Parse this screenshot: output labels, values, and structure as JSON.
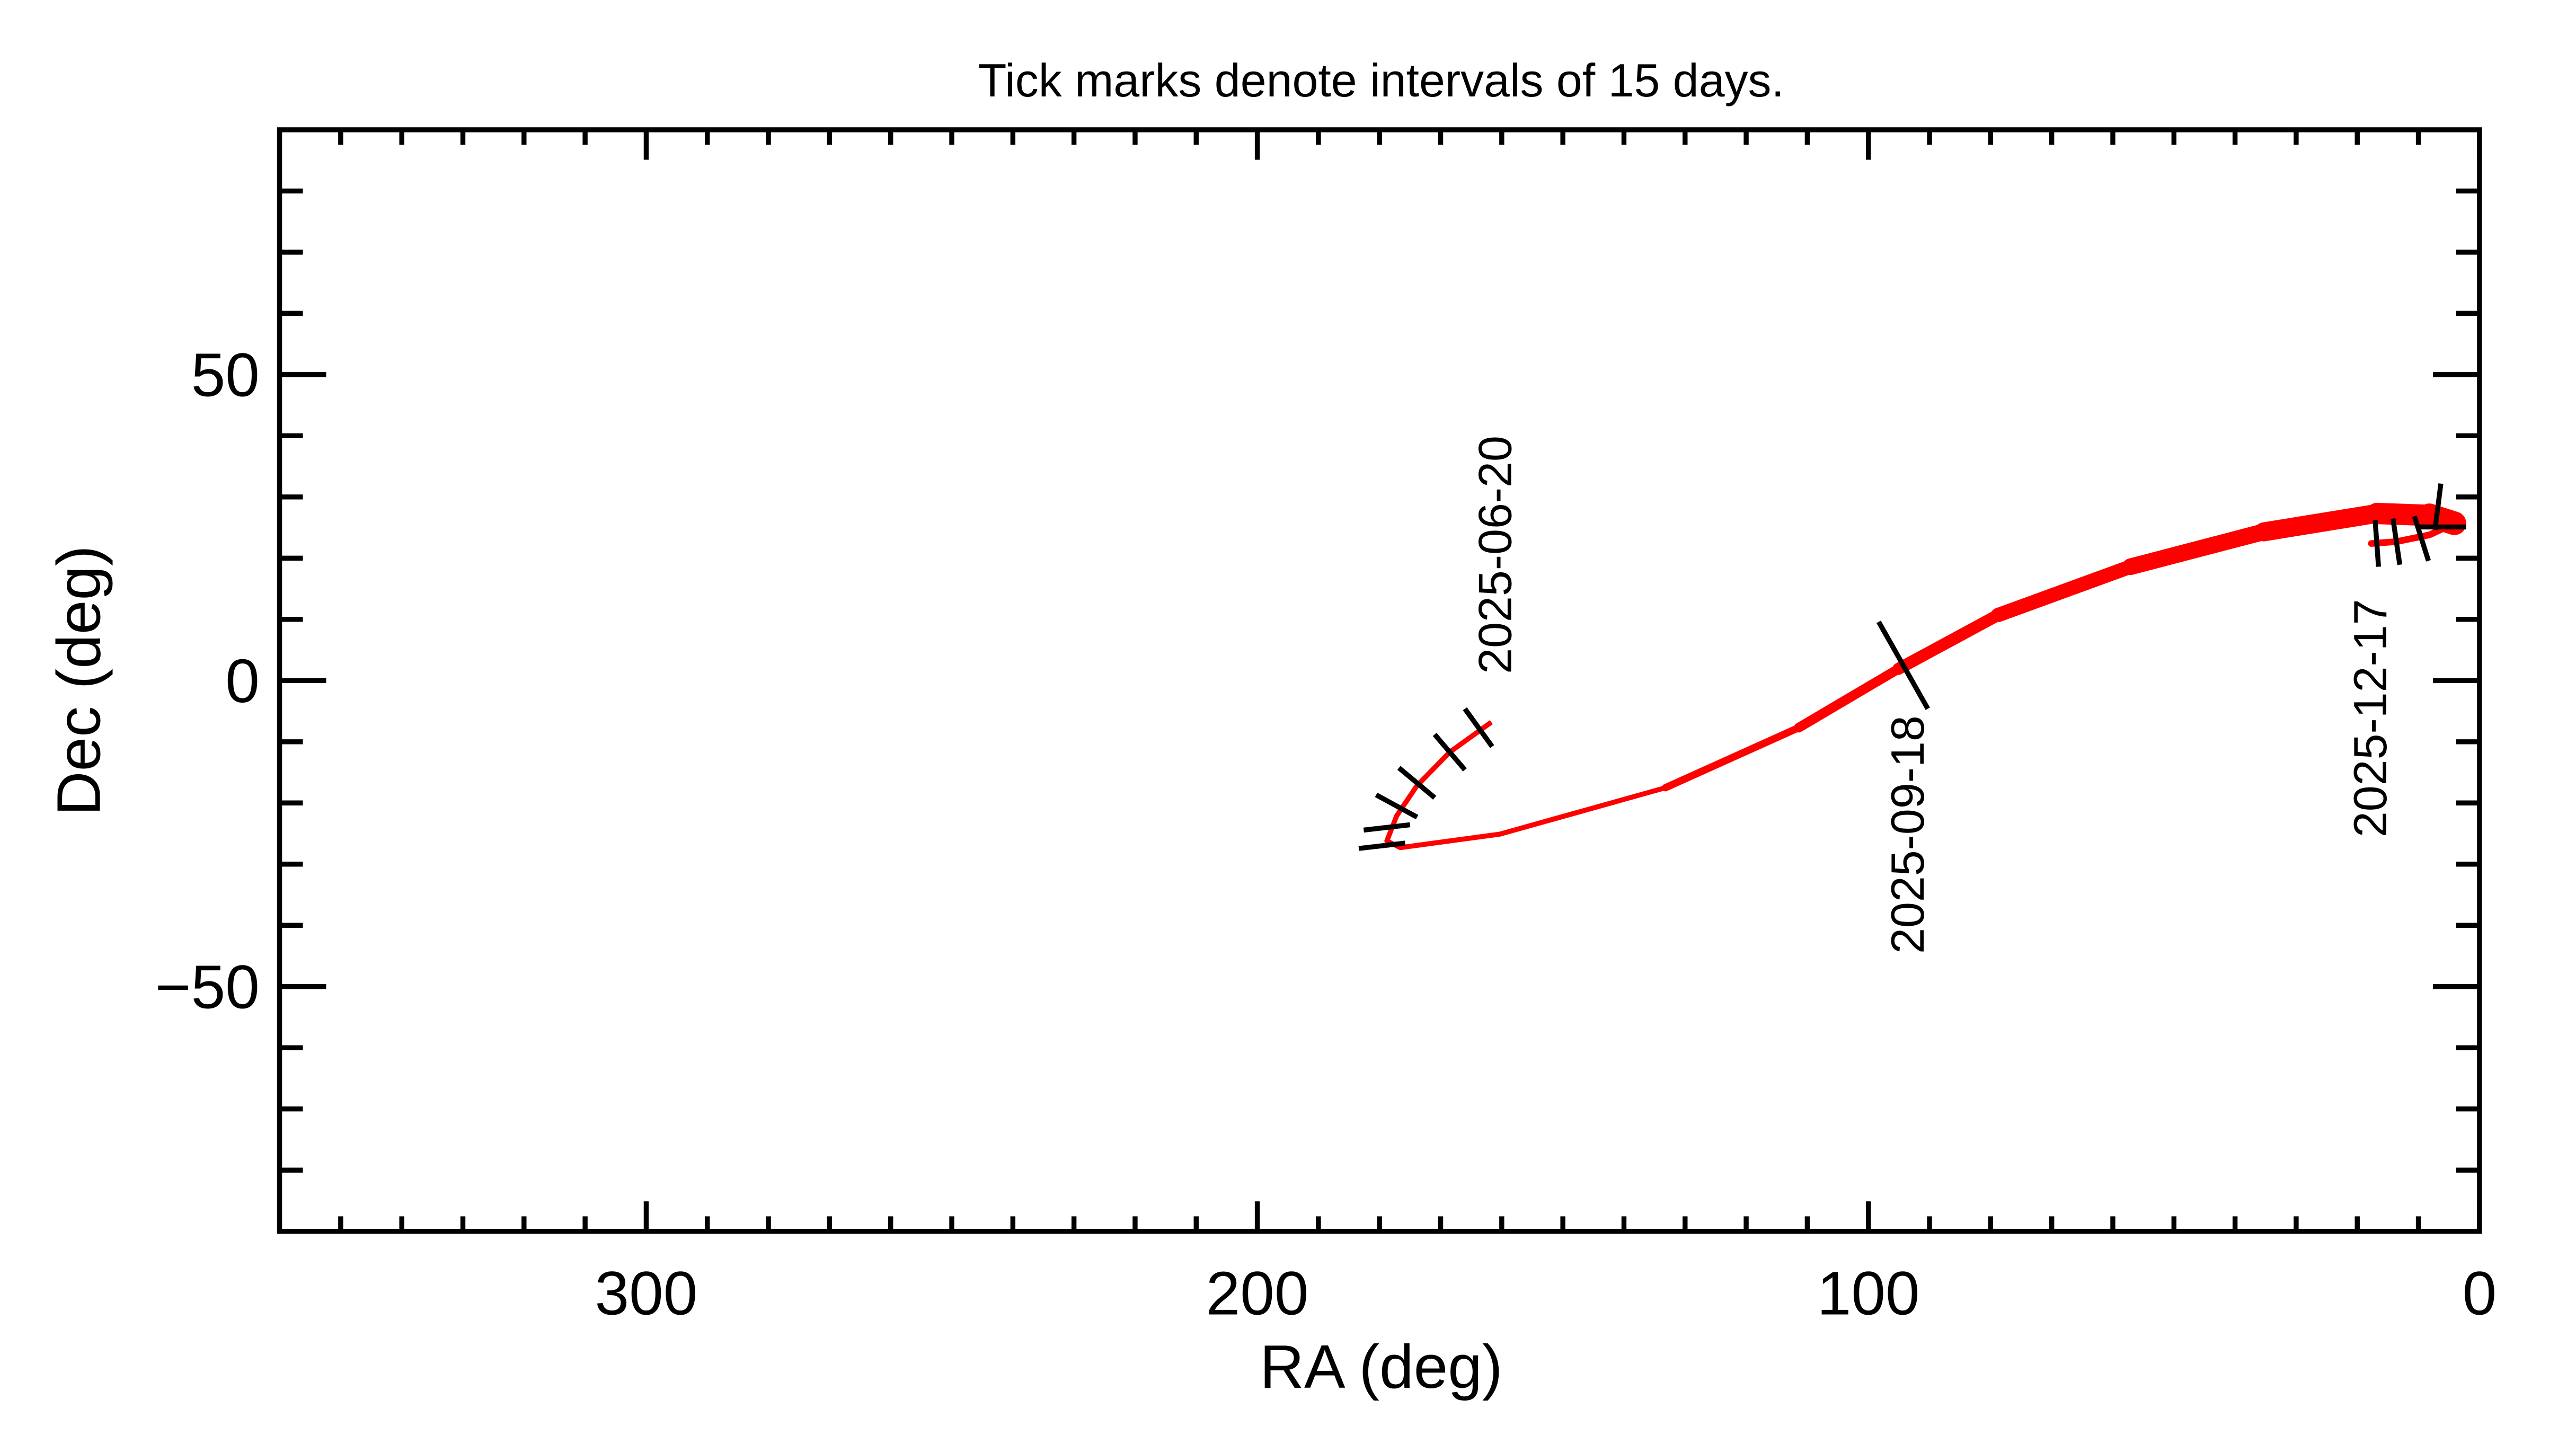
{
  "chart_data": {
    "type": "line",
    "title": "Tick marks denote intervals of 15 days.",
    "xlabel": "RA (deg)",
    "ylabel": "Dec (deg)",
    "x": [
      161.7,
      168.5,
      173.9,
      177.2,
      178.8,
      176.6,
      160.3,
      133.2,
      111.4,
      95.1,
      78.8,
      57.1,
      35.3,
      16.8,
      8.2,
      4.1,
      8.2,
      13.6,
      17.7
    ],
    "values": [
      -6.8,
      -11.7,
      -17.2,
      -22.1,
      -26.2,
      -27.3,
      -25.1,
      -17.5,
      -7.7,
      1.9,
      10.7,
      18.6,
      24.3,
      27.3,
      27.0,
      25.7,
      23.8,
      22.7,
      22.4
    ],
    "color": "#ff0000",
    "markers": {
      "x": [
        163.8,
        168.5,
        173.9,
        177.2,
        178.8,
        179.6,
        94.3,
        6.8,
        6.0,
        9.5,
        13.6,
        16.8
      ],
      "values": [
        -7.7,
        -11.7,
        -16.7,
        -20.5,
        -24.0,
        -27.0,
        2.5,
        28.4,
        25.1,
        23.2,
        22.7,
        22.4
      ]
    },
    "date_labels": [
      "2025-06-20",
      "2025-09-18",
      "2025-12-17"
    ],
    "xlim": [
      360,
      0
    ],
    "xticks": [
      300,
      200,
      100,
      0
    ],
    "xminorticks": [
      10,
      20,
      30,
      40,
      50,
      60,
      70,
      80,
      90,
      110,
      120,
      130,
      140,
      150,
      160,
      170,
      180,
      190,
      210,
      220,
      230,
      240,
      250,
      260,
      270,
      280,
      290,
      310,
      320,
      330,
      340,
      350
    ],
    "ylim": [
      -90,
      90
    ],
    "yticks": [
      {
        "value": -50,
        "label": "−50"
      },
      0,
      50
    ],
    "yminorticks": [
      -80,
      -70,
      -60,
      -40,
      -30,
      -20,
      -10,
      10,
      20,
      30,
      40,
      60,
      70,
      80
    ]
  }
}
